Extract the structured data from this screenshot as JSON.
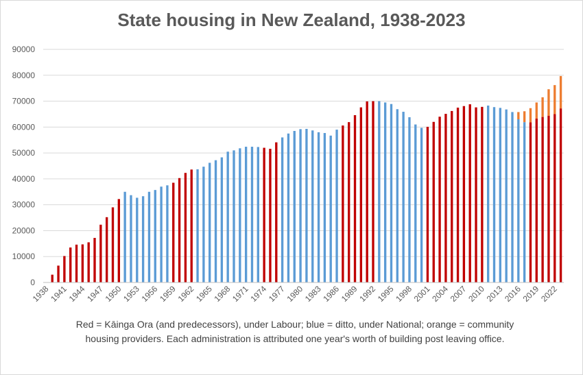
{
  "chart_data": {
    "type": "bar",
    "stacked": true,
    "title": "State housing in New Zealand, 1938-2023",
    "xlabel": "",
    "ylabel": "",
    "ylim": [
      0,
      90000
    ],
    "yticks": [
      0,
      10000,
      20000,
      30000,
      40000,
      50000,
      60000,
      70000,
      80000,
      90000
    ],
    "grid": true,
    "legend": "none",
    "x_tick_labels": [
      "1938",
      "1941",
      "1944",
      "1947",
      "1950",
      "1953",
      "1956",
      "1959",
      "1962",
      "1965",
      "1968",
      "1971",
      "1974",
      "1977",
      "1980",
      "1983",
      "1986",
      "1989",
      "1992",
      "1995",
      "1998",
      "2001",
      "2004",
      "2007",
      "2010",
      "2013",
      "2016",
      "2019",
      "2022"
    ],
    "years": [
      1938,
      1939,
      1940,
      1941,
      1942,
      1943,
      1944,
      1945,
      1946,
      1947,
      1948,
      1949,
      1950,
      1951,
      1952,
      1953,
      1954,
      1955,
      1956,
      1957,
      1958,
      1959,
      1960,
      1961,
      1962,
      1963,
      1964,
      1965,
      1966,
      1967,
      1968,
      1969,
      1970,
      1971,
      1972,
      1973,
      1974,
      1975,
      1976,
      1977,
      1978,
      1979,
      1980,
      1981,
      1982,
      1983,
      1984,
      1985,
      1986,
      1987,
      1988,
      1989,
      1990,
      1991,
      1992,
      1993,
      1994,
      1995,
      1996,
      1997,
      1998,
      1999,
      2000,
      2001,
      2002,
      2003,
      2004,
      2005,
      2006,
      2007,
      2008,
      2009,
      2010,
      2011,
      2012,
      2013,
      2014,
      2015,
      2016,
      2017,
      2018,
      2019,
      2020,
      2021,
      2022,
      2023
    ],
    "kainga_ora": [
      0,
      3000,
      6500,
      10200,
      13500,
      14600,
      14700,
      15500,
      17200,
      22300,
      25200,
      29000,
      32200,
      35000,
      33700,
      32700,
      33300,
      35000,
      35700,
      37000,
      37500,
      38500,
      40300,
      42300,
      43600,
      43700,
      44700,
      46200,
      47200,
      48300,
      50500,
      51000,
      51800,
      52400,
      52400,
      52300,
      52000,
      51600,
      54100,
      56000,
      57500,
      58500,
      59200,
      59300,
      58700,
      58000,
      57700,
      56700,
      59000,
      60600,
      61900,
      64600,
      67600,
      69900,
      70000,
      70000,
      69500,
      68900,
      66900,
      65900,
      63800,
      61000,
      59700,
      60100,
      62000,
      64000,
      65100,
      66200,
      67500,
      68100,
      68800,
      67600,
      67800,
      68300,
      67700,
      67400,
      66800,
      65800,
      63000,
      61900,
      61800,
      63300,
      63900,
      64400,
      65000,
      67200
    ],
    "community_housing": [
      0,
      0,
      0,
      0,
      0,
      0,
      0,
      0,
      0,
      0,
      0,
      0,
      0,
      0,
      0,
      0,
      0,
      0,
      0,
      0,
      0,
      0,
      0,
      0,
      0,
      0,
      0,
      0,
      0,
      0,
      0,
      0,
      0,
      0,
      0,
      0,
      0,
      0,
      0,
      0,
      0,
      0,
      0,
      0,
      0,
      0,
      0,
      0,
      0,
      0,
      0,
      0,
      0,
      0,
      0,
      0,
      0,
      0,
      0,
      0,
      0,
      0,
      0,
      0,
      0,
      0,
      0,
      0,
      0,
      0,
      0,
      0,
      0,
      0,
      0,
      0,
      0,
      0,
      2800,
      4200,
      5500,
      6200,
      7600,
      10200,
      11200,
      12500
    ],
    "government": [
      "labour",
      "labour",
      "labour",
      "labour",
      "labour",
      "labour",
      "labour",
      "labour",
      "labour",
      "labour",
      "labour",
      "labour",
      "labour",
      "national",
      "national",
      "national",
      "national",
      "national",
      "national",
      "national",
      "national",
      "labour",
      "labour",
      "labour",
      "labour",
      "national",
      "national",
      "national",
      "national",
      "national",
      "national",
      "national",
      "national",
      "national",
      "national",
      "national",
      "labour",
      "labour",
      "labour",
      "national",
      "national",
      "national",
      "national",
      "national",
      "national",
      "national",
      "national",
      "national",
      "national",
      "labour",
      "labour",
      "labour",
      "labour",
      "labour",
      "labour",
      "national",
      "national",
      "national",
      "national",
      "national",
      "national",
      "national",
      "national",
      "labour",
      "labour",
      "labour",
      "labour",
      "labour",
      "labour",
      "labour",
      "labour",
      "labour",
      "labour",
      "national",
      "national",
      "national",
      "national",
      "national",
      "national",
      "national",
      "labour",
      "labour",
      "labour",
      "labour",
      "labour",
      "labour"
    ],
    "colors": {
      "labour": "#c00000",
      "national": "#5b9bd5",
      "community": "#ed7d31",
      "grid": "#d9d9d9",
      "axis_text": "#595959"
    },
    "caption": "Red = Kāinga Ora (and predecessors), under Labour; blue = ditto, under National; orange = community housing providers. Each administration is attributed one year's worth of building post leaving office."
  }
}
